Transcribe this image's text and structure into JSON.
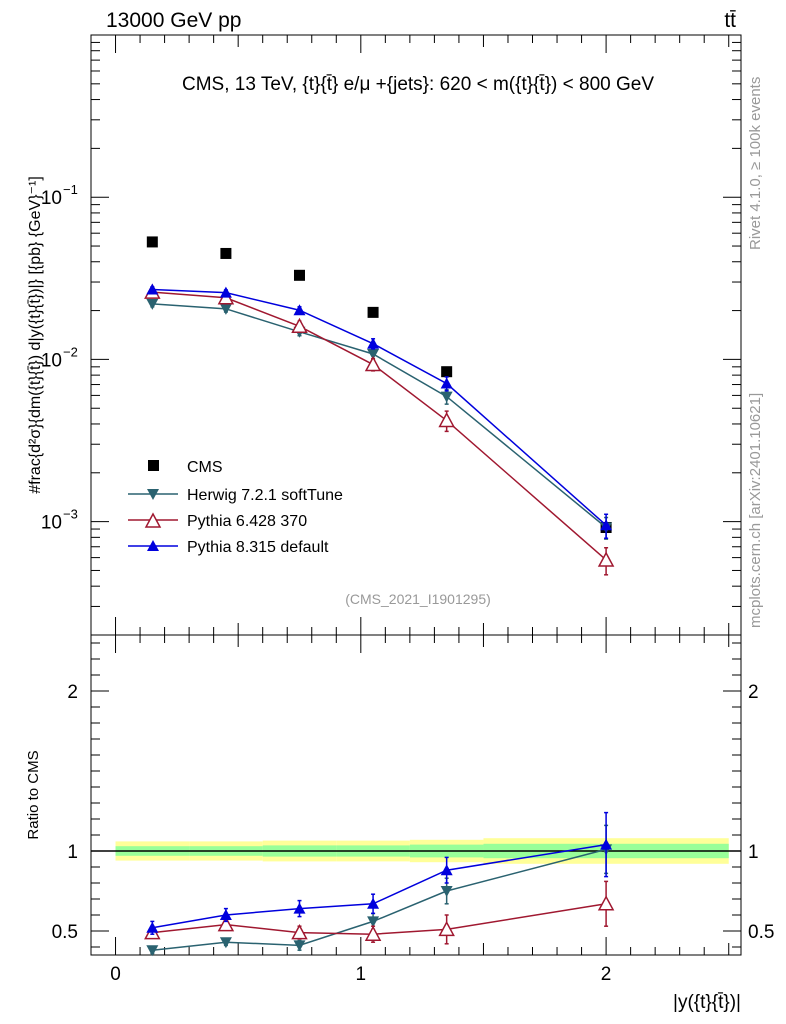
{
  "header": {
    "left": "13000 GeV pp",
    "right": "tt̄"
  },
  "side_text": {
    "rivet": "Rivet 4.1.0, ≥ 100k events",
    "mcplots": "mcplots.cern.ch [arXiv:2401.10621]"
  },
  "chart_data": [
    {
      "type": "scatter",
      "panel": "main",
      "title": "CMS, 13 TeV, {t}{t̄} e/μ +{jets}: 620 < m({t}{t̄}) < 800 GeV",
      "watermark": "(CMS_2021_I1901295)",
      "ylabel": "#frac{d²σ}{dm({t}{t̄}) d|y({t}{t̄})|} [{pb} {GeV}⁻¹]",
      "yscale": "log",
      "ylim": [
        0.0002,
        1.0
      ],
      "xlim": [
        -0.1,
        2.55
      ],
      "ytick_labels": [
        {
          "value": 0.1,
          "base": "10",
          "exp": "−1"
        },
        {
          "value": 0.01,
          "base": "10",
          "exp": "−2"
        },
        {
          "value": 0.001,
          "base": "10",
          "exp": "−3"
        }
      ],
      "x": [
        0.15,
        0.45,
        0.75,
        1.05,
        1.35,
        2.0
      ],
      "series": [
        {
          "name": "CMS",
          "color": "#000000",
          "marker": "square",
          "values": [
            0.053,
            0.045,
            0.033,
            0.0195,
            0.0084,
            0.00092
          ],
          "err": [
            0.0,
            0.0,
            0.0,
            0.0,
            0.0,
            0.0
          ]
        },
        {
          "name": "Herwig 7.2.1 softTune",
          "color": "#2a6270",
          "marker": "tri-down",
          "values": [
            0.022,
            0.0205,
            0.0148,
            0.0108,
            0.0059,
            0.00092
          ],
          "err": [
            0.0009,
            0.0009,
            0.0008,
            0.0009,
            0.0006,
            0.00014
          ]
        },
        {
          "name": "Pythia 6.428 370",
          "color": "#a01830",
          "marker": "tri-up-open",
          "values": [
            0.026,
            0.024,
            0.016,
            0.0093,
            0.0042,
            0.00058
          ],
          "err": [
            0.0012,
            0.0012,
            0.0012,
            0.0008,
            0.0006,
            0.00011
          ]
        },
        {
          "name": "Pythia 8.315 default",
          "color": "#0000dd",
          "marker": "tri-up",
          "values": [
            0.027,
            0.0258,
            0.0201,
            0.0125,
            0.0071,
            0.00095
          ],
          "err": [
            0.001,
            0.001,
            0.001,
            0.0009,
            0.0007,
            0.00016
          ]
        }
      ]
    },
    {
      "type": "line",
      "panel": "ratio",
      "ylabel": "Ratio to CMS",
      "xlabel": "|y({t}{t̄})|",
      "ylim": [
        0.35,
        2.35
      ],
      "xlim": [
        -0.1,
        2.55
      ],
      "yticks": [
        0.5,
        1,
        2
      ],
      "ytick_labels": [
        "0.5",
        "1",
        "2"
      ],
      "xticks": [
        0,
        1,
        2
      ],
      "xtick_labels": [
        "0",
        "1",
        "2"
      ],
      "reference": 1.0,
      "bands": {
        "edges": [
          0.0,
          0.3,
          0.6,
          0.9,
          1.2,
          1.5,
          2.5
        ],
        "green": [
          0.03,
          0.03,
          0.035,
          0.035,
          0.04,
          0.045
        ],
        "yellow": [
          0.06,
          0.06,
          0.065,
          0.065,
          0.07,
          0.08
        ]
      },
      "x": [
        0.15,
        0.45,
        0.75,
        1.05,
        1.35,
        2.0
      ],
      "series": [
        {
          "name": "Herwig 7.2.1 softTune",
          "color": "#2a6270",
          "marker": "tri-down",
          "values": [
            0.38,
            0.43,
            0.41,
            0.56,
            0.75,
            1.01
          ],
          "err": [
            0.02,
            0.02,
            0.03,
            0.05,
            0.08,
            0.15
          ]
        },
        {
          "name": "Pythia 6.428 370",
          "color": "#a01830",
          "marker": "tri-up-open",
          "values": [
            0.49,
            0.54,
            0.49,
            0.48,
            0.51,
            0.67
          ],
          "err": [
            0.03,
            0.03,
            0.04,
            0.05,
            0.09,
            0.14
          ]
        },
        {
          "name": "Pythia 8.315 default",
          "color": "#0000dd",
          "marker": "tri-up",
          "values": [
            0.52,
            0.6,
            0.64,
            0.67,
            0.88,
            1.04
          ],
          "err": [
            0.04,
            0.04,
            0.05,
            0.06,
            0.08,
            0.2
          ]
        }
      ]
    }
  ]
}
